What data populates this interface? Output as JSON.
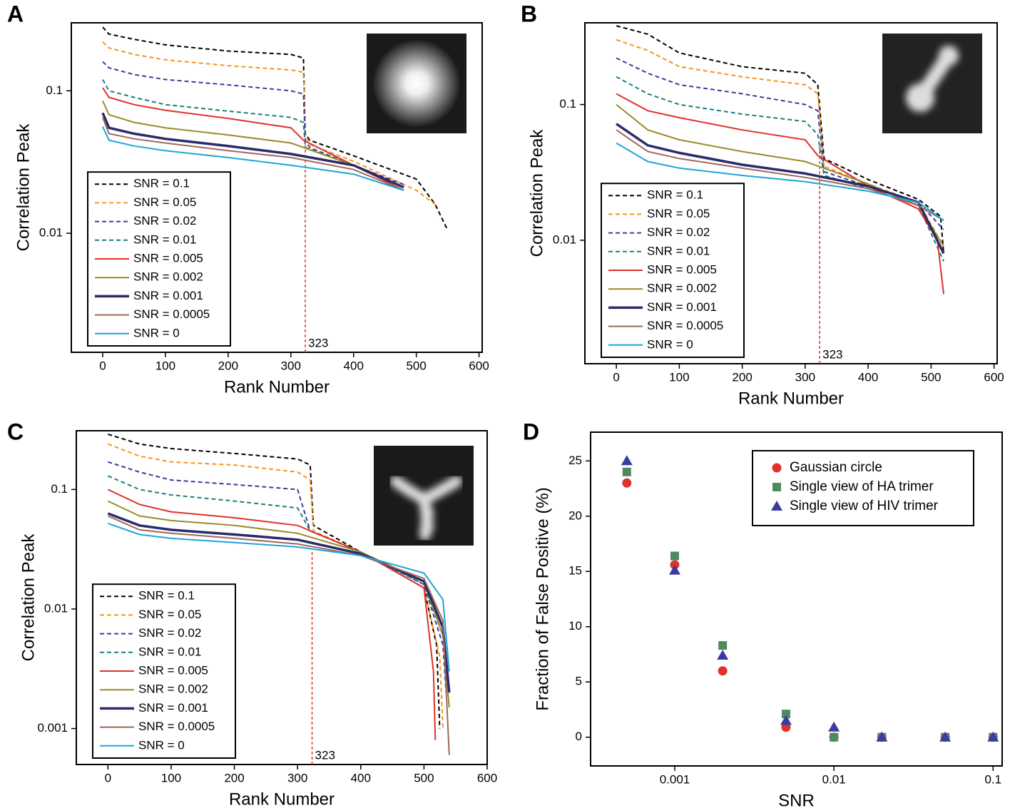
{
  "chart_data": [
    {
      "type": "line",
      "label": "A",
      "xlabel": "Rank Number",
      "ylabel": "Correlation Peak",
      "yscale": "log",
      "xlim": [
        -50,
        605
      ],
      "ylim": [
        0.00146,
        0.3
      ],
      "xticks": [
        0,
        100,
        200,
        300,
        400,
        500,
        600
      ],
      "yticks": [
        0.1,
        0.01
      ],
      "vline": 323,
      "legend": "lower left",
      "series": [
        {
          "name": "SNR = 0.1",
          "color": "#000000",
          "dashed": true,
          "x": [
            0,
            10,
            50,
            100,
            200,
            300,
            320,
            323,
            330,
            400,
            500,
            530,
            550
          ],
          "values": [
            0.28,
            0.25,
            0.23,
            0.21,
            0.19,
            0.18,
            0.17,
            0.05,
            0.045,
            0.035,
            0.024,
            0.016,
            0.0105
          ]
        },
        {
          "name": "SNR = 0.05",
          "color": "#f7941d",
          "dashed": true,
          "x": [
            0,
            10,
            50,
            100,
            200,
            300,
            320,
            323,
            330,
            400,
            500,
            530
          ],
          "values": [
            0.22,
            0.2,
            0.18,
            0.165,
            0.15,
            0.14,
            0.135,
            0.05,
            0.042,
            0.032,
            0.02,
            0.016
          ]
        },
        {
          "name": "SNR = 0.02",
          "color": "#3b3ba0",
          "dashed": true,
          "x": [
            0,
            10,
            50,
            100,
            200,
            300,
            320,
            323,
            330,
            400,
            480
          ],
          "values": [
            0.16,
            0.145,
            0.13,
            0.12,
            0.11,
            0.1,
            0.095,
            0.045,
            0.04,
            0.03,
            0.022
          ]
        },
        {
          "name": "SNR = 0.01",
          "color": "#1b7f7f",
          "dashed": true,
          "x": [
            0,
            10,
            50,
            100,
            200,
            300,
            320,
            323,
            400,
            480
          ],
          "values": [
            0.12,
            0.1,
            0.09,
            0.08,
            0.072,
            0.065,
            0.06,
            0.04,
            0.03,
            0.02
          ]
        },
        {
          "name": "SNR = 0.005",
          "color": "#e0312b",
          "dashed": false,
          "x": [
            0,
            10,
            50,
            100,
            200,
            300,
            320,
            400,
            480
          ],
          "values": [
            0.105,
            0.09,
            0.08,
            0.073,
            0.064,
            0.055,
            0.045,
            0.03,
            0.02
          ]
        },
        {
          "name": "SNR = 0.002",
          "color": "#9a8b2a",
          "dashed": false,
          "x": [
            0,
            10,
            50,
            100,
            200,
            300,
            400,
            480
          ],
          "values": [
            0.085,
            0.068,
            0.06,
            0.055,
            0.049,
            0.043,
            0.03,
            0.021
          ]
        },
        {
          "name": "SNR = 0.001",
          "color": "#2b2b6b",
          "dashed": false,
          "x": [
            0,
            10,
            50,
            100,
            200,
            300,
            400,
            480
          ],
          "values": [
            0.07,
            0.055,
            0.05,
            0.046,
            0.041,
            0.036,
            0.03,
            0.021
          ]
        },
        {
          "name": "SNR = 0.0005",
          "color": "#a0685a",
          "dashed": false,
          "x": [
            0,
            10,
            50,
            100,
            200,
            300,
            400,
            480
          ],
          "values": [
            0.065,
            0.05,
            0.046,
            0.043,
            0.038,
            0.034,
            0.028,
            0.02
          ]
        },
        {
          "name": "SNR = 0",
          "color": "#1ba6d9",
          "dashed": false,
          "x": [
            0,
            10,
            50,
            100,
            200,
            300,
            400,
            480
          ],
          "values": [
            0.056,
            0.045,
            0.041,
            0.038,
            0.034,
            0.03,
            0.026,
            0.02
          ]
        }
      ]
    },
    {
      "type": "line",
      "label": "B",
      "xlabel": "Rank Number",
      "ylabel": "Correlation Peak",
      "yscale": "log",
      "xlim": [
        -50,
        605
      ],
      "ylim": [
        0.00123,
        0.4
      ],
      "xticks": [
        0,
        100,
        200,
        300,
        400,
        500,
        600
      ],
      "yticks": [
        0.1,
        0.01
      ],
      "vline": 323,
      "legend": "lower left",
      "series": [
        {
          "name": "SNR = 0.1",
          "color": "#000000",
          "dashed": true,
          "x": [
            0,
            50,
            100,
            200,
            300,
            320,
            330,
            400,
            480,
            515,
            520
          ],
          "values": [
            0.38,
            0.33,
            0.24,
            0.19,
            0.17,
            0.14,
            0.04,
            0.028,
            0.02,
            0.015,
            0.008
          ]
        },
        {
          "name": "SNR = 0.05",
          "color": "#f7941d",
          "dashed": true,
          "x": [
            0,
            50,
            100,
            200,
            300,
            320,
            330,
            400,
            480,
            520
          ],
          "values": [
            0.3,
            0.25,
            0.19,
            0.16,
            0.14,
            0.12,
            0.035,
            0.026,
            0.019,
            0.009
          ]
        },
        {
          "name": "SNR = 0.02",
          "color": "#3b3ba0",
          "dashed": true,
          "x": [
            0,
            50,
            100,
            200,
            300,
            320,
            330,
            400,
            480,
            520
          ],
          "values": [
            0.22,
            0.17,
            0.14,
            0.12,
            0.1,
            0.09,
            0.032,
            0.025,
            0.019,
            0.012
          ]
        },
        {
          "name": "SNR = 0.01",
          "color": "#1b7f7f",
          "dashed": true,
          "x": [
            0,
            50,
            100,
            200,
            300,
            320,
            330,
            400,
            480,
            520
          ],
          "values": [
            0.16,
            0.12,
            0.1,
            0.085,
            0.075,
            0.06,
            0.03,
            0.024,
            0.018,
            0.007
          ]
        },
        {
          "name": "SNR = 0.005",
          "color": "#e0312b",
          "dashed": false,
          "x": [
            0,
            50,
            100,
            200,
            300,
            320,
            400,
            480,
            510,
            520
          ],
          "values": [
            0.12,
            0.09,
            0.08,
            0.065,
            0.055,
            0.042,
            0.025,
            0.017,
            0.01,
            0.004
          ]
        },
        {
          "name": "SNR = 0.002",
          "color": "#9a8b2a",
          "dashed": false,
          "x": [
            0,
            50,
            100,
            200,
            300,
            400,
            480,
            520
          ],
          "values": [
            0.1,
            0.065,
            0.055,
            0.045,
            0.038,
            0.026,
            0.018,
            0.009
          ]
        },
        {
          "name": "SNR = 0.001",
          "color": "#2b2b6b",
          "dashed": false,
          "x": [
            0,
            50,
            100,
            200,
            300,
            400,
            480,
            520
          ],
          "values": [
            0.072,
            0.05,
            0.044,
            0.036,
            0.031,
            0.025,
            0.019,
            0.008
          ]
        },
        {
          "name": "SNR = 0.0005",
          "color": "#a0685a",
          "dashed": false,
          "x": [
            0,
            50,
            100,
            200,
            300,
            400,
            480,
            520
          ],
          "values": [
            0.065,
            0.045,
            0.04,
            0.034,
            0.029,
            0.024,
            0.018,
            0.014
          ]
        },
        {
          "name": "SNR = 0",
          "color": "#1ba6d9",
          "dashed": false,
          "x": [
            0,
            50,
            100,
            200,
            300,
            400,
            480,
            520
          ],
          "values": [
            0.052,
            0.038,
            0.034,
            0.03,
            0.027,
            0.023,
            0.019,
            0.014
          ]
        }
      ]
    },
    {
      "type": "line",
      "label": "C",
      "xlabel": "Rank Number",
      "ylabel": "Correlation Peak",
      "yscale": "log",
      "xlim": [
        -50,
        600
      ],
      "ylim": [
        0.0005,
        0.31
      ],
      "xticks": [
        0,
        100,
        200,
        300,
        400,
        500,
        600
      ],
      "yticks": [
        0.1,
        0.01,
        0.001
      ],
      "vline": 323,
      "legend": "lower left",
      "series": [
        {
          "name": "SNR = 0.1",
          "color": "#000000",
          "dashed": true,
          "x": [
            0,
            50,
            100,
            200,
            300,
            320,
            325,
            400,
            500,
            520,
            525
          ],
          "values": [
            0.29,
            0.24,
            0.22,
            0.2,
            0.18,
            0.16,
            0.05,
            0.03,
            0.015,
            0.005,
            0.001
          ]
        },
        {
          "name": "SNR = 0.05",
          "color": "#f7941d",
          "dashed": true,
          "x": [
            0,
            50,
            100,
            200,
            300,
            320,
            325,
            400,
            500,
            525,
            530
          ],
          "values": [
            0.24,
            0.19,
            0.17,
            0.16,
            0.14,
            0.12,
            0.045,
            0.03,
            0.015,
            0.004,
            0.001
          ]
        },
        {
          "name": "SNR = 0.02",
          "color": "#3b3ba0",
          "dashed": true,
          "x": [
            0,
            50,
            100,
            200,
            300,
            320,
            400,
            500,
            530,
            535
          ],
          "values": [
            0.17,
            0.14,
            0.12,
            0.11,
            0.1,
            0.045,
            0.03,
            0.016,
            0.005,
            0.002
          ]
        },
        {
          "name": "SNR = 0.01",
          "color": "#1b7f7f",
          "dashed": true,
          "x": [
            0,
            50,
            100,
            200,
            300,
            320,
            400,
            500,
            530,
            538
          ],
          "values": [
            0.13,
            0.1,
            0.09,
            0.08,
            0.07,
            0.045,
            0.03,
            0.016,
            0.006,
            0.003
          ]
        },
        {
          "name": "SNR = 0.005",
          "color": "#e0312b",
          "dashed": false,
          "x": [
            0,
            50,
            100,
            200,
            300,
            400,
            500,
            515,
            518
          ],
          "values": [
            0.1,
            0.075,
            0.065,
            0.058,
            0.05,
            0.03,
            0.015,
            0.003,
            0.0008
          ]
        },
        {
          "name": "SNR = 0.002",
          "color": "#9a8b2a",
          "dashed": false,
          "x": [
            0,
            50,
            100,
            200,
            300,
            400,
            500,
            530,
            540
          ],
          "values": [
            0.08,
            0.06,
            0.055,
            0.05,
            0.043,
            0.03,
            0.017,
            0.006,
            0.0015
          ]
        },
        {
          "name": "SNR = 0.001",
          "color": "#2b2b6b",
          "dashed": false,
          "x": [
            0,
            50,
            100,
            200,
            300,
            400,
            500,
            530,
            540
          ],
          "values": [
            0.063,
            0.05,
            0.046,
            0.042,
            0.038,
            0.029,
            0.017,
            0.007,
            0.002
          ]
        },
        {
          "name": "SNR = 0.0005",
          "color": "#a0685a",
          "dashed": false,
          "x": [
            0,
            50,
            100,
            200,
            300,
            400,
            500,
            530,
            540
          ],
          "values": [
            0.06,
            0.046,
            0.043,
            0.039,
            0.035,
            0.028,
            0.018,
            0.008,
            0.0006
          ]
        },
        {
          "name": "SNR = 0",
          "color": "#1ba6d9",
          "dashed": false,
          "x": [
            0,
            50,
            100,
            200,
            300,
            400,
            500,
            530,
            540
          ],
          "values": [
            0.052,
            0.042,
            0.039,
            0.036,
            0.033,
            0.028,
            0.02,
            0.012,
            0.003
          ]
        }
      ]
    },
    {
      "type": "scatter",
      "label": "D",
      "xlabel": "SNR",
      "ylabel": "Fraction of False Positive (%)",
      "xscale": "log",
      "xlim": [
        0.000296,
        0.114
      ],
      "ylim": [
        -2.6,
        27.6
      ],
      "xticks": [
        0.001,
        0.01,
        0.1
      ],
      "yticks": [
        0,
        5,
        10,
        15,
        20,
        25
      ],
      "legend": "upper right",
      "series": [
        {
          "name": "Gaussian circle",
          "color": "#e0312b",
          "marker": "circle",
          "x": [
            0.0005,
            0.001,
            0.002,
            0.005,
            0.01,
            0.02,
            0.05,
            0.1
          ],
          "values": [
            23,
            15.6,
            6,
            0.9,
            0,
            0,
            0,
            0
          ]
        },
        {
          "name": "Single view of HA trimer",
          "color": "#4e8a5e",
          "marker": "square",
          "x": [
            0.0005,
            0.001,
            0.002,
            0.005,
            0.01,
            0.02,
            0.05,
            0.1
          ],
          "values": [
            24,
            16.4,
            8.3,
            2.1,
            0,
            0,
            0,
            0
          ]
        },
        {
          "name": "Single view of HIV trimer",
          "color": "#3b3ba0",
          "marker": "triangle",
          "x": [
            0.0005,
            0.001,
            0.002,
            0.005,
            0.01,
            0.02,
            0.05,
            0.1
          ],
          "values": [
            25,
            15.1,
            7.4,
            1.5,
            0.9,
            0,
            0,
            0
          ]
        }
      ]
    }
  ]
}
